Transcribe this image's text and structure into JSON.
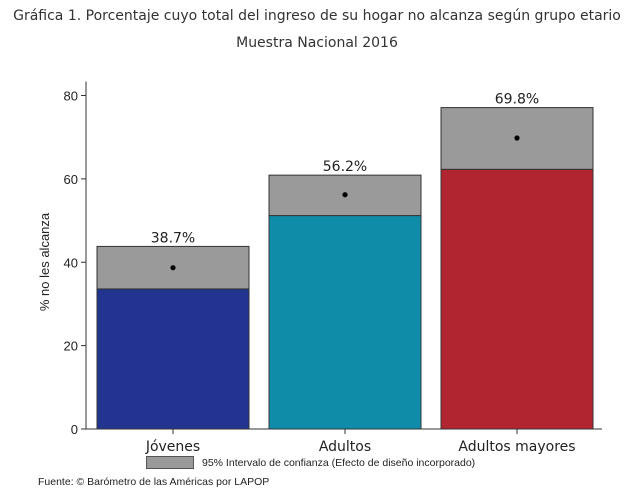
{
  "chart_data": {
    "type": "bar",
    "title": "Gráfica 1. Porcentaje cuyo total del ingreso de su hogar no alcanza según grupo etario",
    "subtitle": "Muestra Nacional 2016",
    "xlabel": "",
    "ylabel": "% no les alcanza",
    "ylim": [
      0,
      80
    ],
    "yticks": [
      "0",
      "20",
      "40",
      "60",
      "80"
    ],
    "categories": [
      "Jóvenes",
      "Adultos",
      "Adultos mayores"
    ],
    "values": [
      38.7,
      56.2,
      69.8
    ],
    "data_labels": [
      "38.7%",
      "56.2%",
      "69.8%"
    ],
    "ci_low": [
      33.6,
      51.2,
      62.3
    ],
    "ci_high": [
      43.8,
      60.9,
      77.1
    ],
    "colors": [
      "#223490",
      "#0f8ca8",
      "#b02530"
    ],
    "ci_color": "#9a9a9a",
    "legend": "95% Intervalo de confianza (Efecto de diseño incorporado)",
    "legend_position": "bottom",
    "grid": false,
    "source": "Fuente: © Barómetro de las Américas por LAPOP"
  }
}
